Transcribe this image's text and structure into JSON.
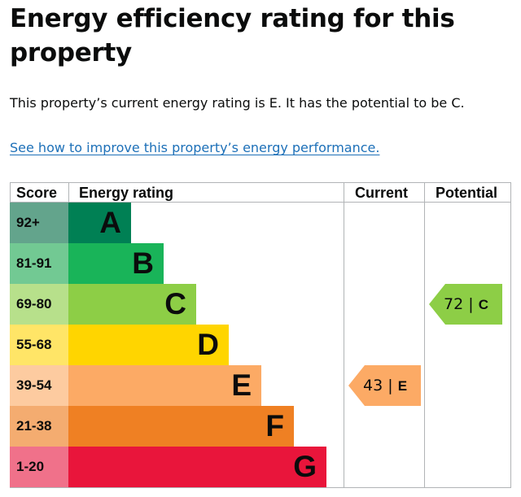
{
  "page": {
    "title": "Energy efficiency rating for this property",
    "summary": "This property’s current energy rating is E. It has the potential to be C.",
    "link_text": "See how to improve this property’s energy performance."
  },
  "table": {
    "headers": {
      "score": "Score",
      "rating": "Energy rating",
      "current": "Current",
      "potential": "Potential"
    },
    "bands": [
      {
        "score": "92+",
        "letter": "A",
        "bar_color": "#008054",
        "score_bg": "#63a48c"
      },
      {
        "score": "81-91",
        "letter": "B",
        "bar_color": "#19b459",
        "score_bg": "#72c993"
      },
      {
        "score": "69-80",
        "letter": "C",
        "bar_color": "#8dce46",
        "score_bg": "#b7e08b"
      },
      {
        "score": "55-68",
        "letter": "D",
        "bar_color": "#ffd500",
        "score_bg": "#ffe567"
      },
      {
        "score": "39-54",
        "letter": "E",
        "bar_color": "#fcaa65",
        "score_bg": "#fdcba0"
      },
      {
        "score": "21-38",
        "letter": "F",
        "bar_color": "#ef8023",
        "score_bg": "#f4ac70"
      },
      {
        "score": "1-20",
        "letter": "G",
        "bar_color": "#e9153b",
        "score_bg": "#f0718a"
      }
    ],
    "current": {
      "value": "43",
      "sep": "|",
      "letter": "E",
      "color": "#fcaa65"
    },
    "potential": {
      "value": "72",
      "sep": "|",
      "letter": "C",
      "color": "#8dce46"
    }
  }
}
